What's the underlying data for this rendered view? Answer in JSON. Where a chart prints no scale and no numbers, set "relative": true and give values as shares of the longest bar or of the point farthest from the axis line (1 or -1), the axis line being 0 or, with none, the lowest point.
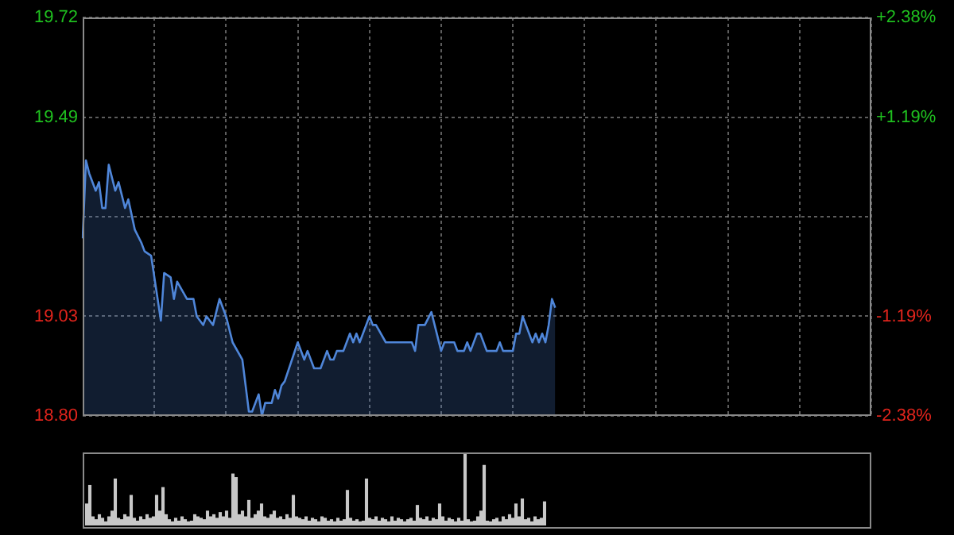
{
  "chart_data": [
    {
      "type": "area",
      "color": "#4f86d9",
      "categories": [
        null,
        null,
        null,
        null,
        null,
        null,
        null,
        null,
        null,
        null,
        null,
        null,
        null,
        null,
        null,
        null,
        null,
        null,
        null,
        null,
        null,
        null,
        null,
        null,
        null,
        null,
        null,
        null,
        null,
        null,
        null,
        null,
        null,
        null,
        null,
        null,
        null,
        null,
        null,
        null,
        null,
        null,
        null,
        null,
        null,
        null,
        null,
        null,
        null,
        null,
        null,
        null,
        null,
        null,
        null,
        null,
        null,
        null,
        null,
        null,
        null,
        null,
        null,
        null,
        null,
        null,
        null,
        null,
        null,
        null,
        null,
        null,
        null,
        null,
        null,
        null,
        null,
        null,
        null,
        null,
        null,
        null,
        null,
        null,
        null,
        null,
        null,
        null,
        null,
        null,
        null,
        null,
        null,
        null,
        null,
        null,
        null,
        null,
        null,
        null,
        null,
        null,
        null,
        null,
        null,
        null,
        null,
        null,
        null,
        null,
        null,
        null,
        null,
        null,
        null,
        null,
        null,
        null,
        null,
        null,
        null,
        null,
        null,
        null,
        null,
        null,
        null,
        null,
        null,
        null,
        null,
        null,
        null,
        null,
        null,
        null,
        null,
        null,
        null,
        null,
        null,
        null,
        null,
        null,
        null,
        null,
        null,
        null,
        null,
        null,
        null,
        null,
        null,
        null,
        null,
        null,
        null,
        null,
        null,
        null,
        null,
        null,
        null,
        null,
        null,
        null,
        null,
        null,
        null,
        null,
        null,
        null,
        null,
        null,
        null,
        null,
        null,
        null,
        null,
        null,
        null,
        null,
        null,
        null,
        null,
        null,
        null,
        null,
        null,
        null,
        null,
        null,
        null,
        null,
        null,
        null,
        null,
        null,
        null,
        null,
        null,
        null,
        null,
        null,
        null,
        null,
        null,
        null,
        null,
        null,
        null,
        null,
        null,
        null,
        null,
        null,
        null,
        null,
        null,
        null,
        null,
        null,
        null,
        null,
        null,
        null,
        null,
        null,
        null,
        null,
        null,
        null,
        null,
        null,
        null,
        null,
        null,
        null,
        null,
        null,
        null,
        null,
        null
      ],
      "values": [
        19.21,
        19.39,
        19.36,
        null,
        19.32,
        19.34,
        19.28,
        19.28,
        19.38,
        null,
        19.32,
        19.34,
        null,
        19.28,
        19.3,
        null,
        19.23,
        null,
        19.2,
        19.18,
        null,
        19.17,
        null,
        19.07,
        19.02,
        19.13,
        null,
        19.12,
        19.07,
        19.11,
        null,
        null,
        19.07,
        null,
        19.07,
        19.03,
        null,
        19.01,
        19.03,
        null,
        19.01,
        null,
        19.07,
        null,
        19.03,
        null,
        18.97,
        null,
        null,
        18.93,
        null,
        18.81,
        18.81,
        null,
        18.85,
        18.8,
        18.83,
        null,
        18.83,
        18.86,
        18.84,
        18.87,
        18.88,
        null,
        null,
        null,
        18.97,
        null,
        18.93,
        18.95,
        null,
        18.91,
        null,
        18.91,
        null,
        18.95,
        18.93,
        18.93,
        18.95,
        null,
        18.95,
        18.97,
        18.99,
        18.97,
        18.99,
        18.97,
        null,
        19.01,
        19.03,
        19.01,
        19.01,
        null,
        null,
        18.97,
        null,
        null,
        null,
        null,
        null,
        null,
        null,
        18.97,
        18.95,
        19.01,
        null,
        19.01,
        null,
        19.04,
        19.01,
        null,
        18.95,
        18.97,
        null,
        null,
        18.97,
        18.95,
        null,
        18.95,
        18.97,
        18.95,
        null,
        18.99,
        18.99,
        null,
        18.95,
        null,
        null,
        18.95,
        18.97,
        18.95,
        null,
        null,
        18.95,
        18.99,
        18.99,
        19.03,
        null,
        null,
        18.97,
        18.99,
        18.97,
        18.99,
        18.97,
        19.01,
        19.07,
        19.05,
        null,
        null,
        null,
        null,
        null,
        null,
        null,
        null,
        null,
        null,
        null,
        null,
        null,
        null,
        null,
        null,
        null,
        null,
        null,
        null,
        null,
        null,
        null,
        null,
        null,
        null,
        null,
        null,
        null,
        null,
        null,
        null,
        null,
        null,
        null,
        null,
        null,
        null,
        null,
        null,
        null,
        null,
        null,
        null,
        null,
        null,
        null,
        null,
        null,
        null,
        null,
        null,
        null,
        null,
        null,
        null,
        null,
        null,
        null,
        null,
        null,
        null,
        null,
        null,
        null,
        null,
        null,
        null,
        null,
        null,
        null,
        null,
        null,
        null,
        null,
        null,
        null,
        null,
        null,
        null,
        null,
        null,
        null,
        null,
        null,
        null,
        null,
        null,
        null,
        null,
        null,
        null,
        null,
        null,
        null,
        null,
        null
      ],
      "ylim": [
        18.8,
        19.72
      ],
      "yticks": [
        {
          "value": 18.8,
          "label": "18.80"
        },
        {
          "value": 19.03,
          "label": "19.03"
        },
        {
          "value": 19.26,
          "label": null
        },
        {
          "value": 19.49,
          "label": "19.49"
        },
        {
          "value": 19.72,
          "label": "19.72"
        }
      ],
      "y2lim": [
        -2.38,
        2.38
      ],
      "y2ticks": [
        {
          "value": -2.38,
          "label": "-2.38%"
        },
        {
          "value": -1.19,
          "label": "-1.19%"
        },
        {
          "value": 0,
          "label": null
        },
        {
          "value": 1.19,
          "label": "+1.19%"
        },
        {
          "value": 2.38,
          "label": "+2.38%"
        }
      ],
      "grid": true,
      "tick_labels": "y",
      "marker": "none"
    },
    {
      "type": "bar",
      "relative": true,
      "color": "#c8c8c8",
      "tick_labels": false,
      "categories": [
        null,
        null,
        null,
        null,
        null,
        null,
        null,
        null,
        null,
        null,
        null,
        null,
        null,
        null,
        null,
        null,
        null,
        null,
        null,
        null,
        null,
        null,
        null,
        null,
        null,
        null,
        null,
        null,
        null,
        null,
        null,
        null,
        null,
        null,
        null,
        null,
        null,
        null,
        null,
        null,
        null,
        null,
        null,
        null,
        null,
        null,
        null,
        null,
        null,
        null,
        null,
        null,
        null,
        null,
        null,
        null,
        null,
        null,
        null,
        null,
        null,
        null,
        null,
        null,
        null,
        null,
        null,
        null,
        null,
        null,
        null,
        null,
        null,
        null,
        null,
        null,
        null,
        null,
        null,
        null,
        null,
        null,
        null,
        null,
        null,
        null,
        null,
        null,
        null,
        null,
        null,
        null,
        null,
        null,
        null,
        null,
        null,
        null,
        null,
        null,
        null,
        null,
        null,
        null,
        null,
        null,
        null,
        null,
        null,
        null,
        null,
        null,
        null,
        null,
        null,
        null,
        null,
        null,
        null,
        null,
        null,
        null,
        null,
        null,
        null,
        null,
        null,
        null,
        null,
        null,
        null,
        null,
        null,
        null,
        null,
        null,
        null,
        null,
        null,
        null,
        null,
        null,
        null,
        null,
        null
      ],
      "values": [
        0.3,
        0.56,
        0.12,
        0.08,
        0.15,
        0.1,
        0.05,
        0.12,
        0.2,
        0.65,
        0.1,
        0.08,
        0.15,
        0.12,
        0.42,
        0.1,
        0.06,
        0.12,
        0.08,
        0.15,
        0.1,
        0.12,
        0.42,
        0.2,
        0.53,
        0.15,
        0.08,
        0.05,
        0.1,
        0.06,
        0.12,
        0.08,
        0.05,
        0.06,
        0.15,
        0.12,
        0.1,
        0.08,
        0.2,
        0.12,
        0.15,
        0.1,
        0.18,
        0.12,
        0.2,
        0.1,
        0.72,
        0.67,
        0.15,
        0.2,
        0.12,
        0.35,
        0.1,
        0.15,
        0.2,
        0.3,
        0.12,
        0.1,
        0.15,
        0.2,
        0.1,
        0.12,
        0.08,
        0.15,
        0.1,
        0.42,
        0.12,
        0.1,
        0.08,
        0.12,
        0.06,
        0.1,
        0.08,
        0.05,
        0.12,
        0.1,
        0.06,
        0.08,
        0.05,
        0.1,
        0.06,
        0.08,
        0.49,
        0.1,
        0.06,
        0.08,
        0.05,
        0.06,
        0.65,
        0.1,
        0.08,
        0.12,
        0.06,
        0.1,
        0.08,
        0.05,
        0.12,
        0.06,
        0.1,
        0.08,
        0.05,
        0.08,
        0.1,
        0.06,
        0.28,
        0.1,
        0.08,
        0.12,
        0.06,
        0.1,
        0.08,
        0.3,
        0.12,
        0.06,
        0.1,
        0.08,
        0.05,
        0.1,
        0.06,
        1,
        0.08,
        0.05,
        0.06,
        0.12,
        0.2,
        0.84,
        0.06,
        0.05,
        0.08,
        0.1,
        0.05,
        0.12,
        0.08,
        0.15,
        0.1,
        0.3,
        0.12,
        0.37,
        0.08,
        0.1,
        0.05,
        0.12,
        0.08,
        0.1,
        0.33
      ]
    }
  ]
}
